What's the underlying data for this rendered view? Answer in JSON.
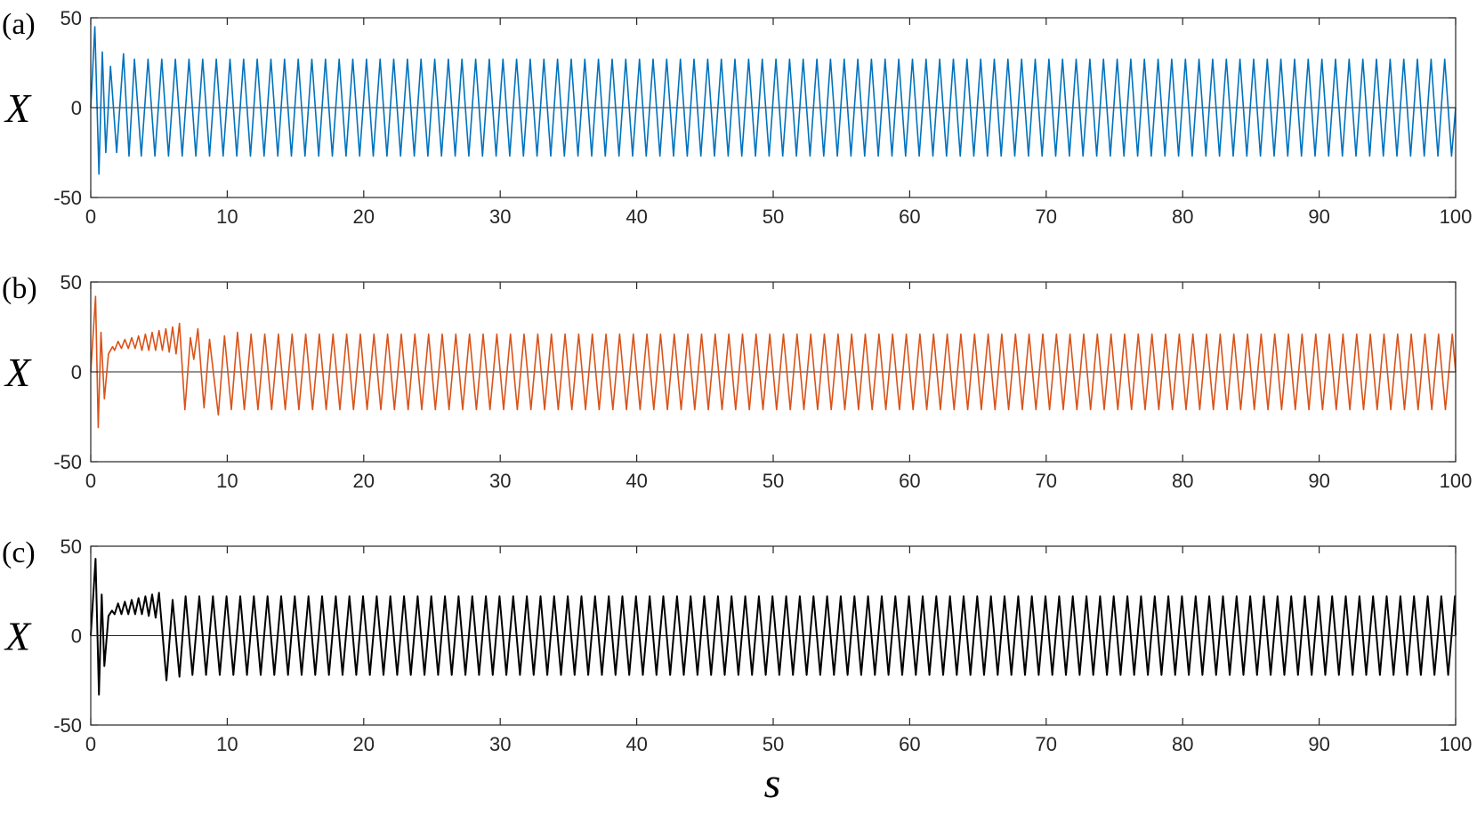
{
  "xlabel": "s",
  "chart_data": [
    {
      "type": "line",
      "panel_label": "(a)",
      "ylabel": "X",
      "xlim": [
        0,
        100
      ],
      "ylim": [
        -50,
        50
      ],
      "xticks": [
        0,
        10,
        20,
        30,
        40,
        50,
        60,
        70,
        80,
        90,
        100
      ],
      "yticks": [
        -50,
        0,
        50
      ],
      "series": [
        {
          "color": "#0072BD",
          "transient": [
            [
              0,
              0
            ],
            [
              0.3,
              45
            ],
            [
              0.6,
              -37
            ],
            [
              0.85,
              31
            ],
            [
              1.1,
              -25
            ],
            [
              1.45,
              23
            ],
            [
              1.9,
              -25
            ],
            [
              2.4,
              30
            ],
            [
              2.8,
              -27
            ],
            [
              3.2,
              27
            ]
          ],
          "steady": {
            "start": 3.2,
            "period": 1.0,
            "max": 27,
            "min": -27,
            "end": 100
          }
        }
      ]
    },
    {
      "type": "line",
      "panel_label": "(b)",
      "ylabel": "X",
      "xlim": [
        0,
        100
      ],
      "ylim": [
        -50,
        50
      ],
      "xticks": [
        0,
        10,
        20,
        30,
        40,
        50,
        60,
        70,
        80,
        90,
        100
      ],
      "yticks": [
        -50,
        0,
        50
      ],
      "series": [
        {
          "color": "#D95319",
          "transient": [
            [
              0,
              0
            ],
            [
              0.35,
              42
            ],
            [
              0.55,
              -31
            ],
            [
              0.75,
              22
            ],
            [
              1.0,
              -15
            ],
            [
              1.3,
              10
            ],
            [
              1.6,
              14
            ],
            [
              1.75,
              12
            ],
            [
              2.0,
              17
            ],
            [
              2.25,
              13
            ],
            [
              2.5,
              18
            ],
            [
              2.75,
              13
            ],
            [
              3.0,
              19
            ],
            [
              3.25,
              13
            ],
            [
              3.5,
              20
            ],
            [
              3.75,
              12
            ],
            [
              4.0,
              21
            ],
            [
              4.25,
              12
            ],
            [
              4.5,
              22
            ],
            [
              4.75,
              12
            ],
            [
              5.0,
              23
            ],
            [
              5.25,
              12
            ],
            [
              5.5,
              24
            ],
            [
              5.75,
              11
            ],
            [
              6.0,
              25
            ],
            [
              6.25,
              10
            ],
            [
              6.5,
              27
            ],
            [
              6.9,
              -21
            ],
            [
              7.3,
              19
            ],
            [
              7.55,
              7
            ],
            [
              7.85,
              24
            ],
            [
              8.3,
              -20
            ],
            [
              8.7,
              18
            ],
            [
              9.35,
              -24
            ],
            [
              9.8,
              20
            ],
            [
              10.3,
              -21
            ],
            [
              10.75,
              22
            ]
          ],
          "steady": {
            "start": 10.75,
            "period": 1.0,
            "max": 21,
            "min": -21,
            "end": 100
          }
        }
      ]
    },
    {
      "type": "line",
      "panel_label": "(c)",
      "ylabel": "X",
      "xlim": [
        0,
        100
      ],
      "ylim": [
        -50,
        50
      ],
      "xticks": [
        0,
        10,
        20,
        30,
        40,
        50,
        60,
        70,
        80,
        90,
        100
      ],
      "yticks": [
        -50,
        0,
        50
      ],
      "series": [
        {
          "color": "#000000",
          "transient": [
            [
              0,
              0
            ],
            [
              0.35,
              43
            ],
            [
              0.6,
              -33
            ],
            [
              0.8,
              23
            ],
            [
              1.0,
              -17
            ],
            [
              1.3,
              11
            ],
            [
              1.55,
              14
            ],
            [
              1.75,
              12
            ],
            [
              2.0,
              18
            ],
            [
              2.25,
              12
            ],
            [
              2.5,
              19
            ],
            [
              2.75,
              12
            ],
            [
              3.0,
              20
            ],
            [
              3.25,
              12
            ],
            [
              3.5,
              21
            ],
            [
              3.75,
              12
            ],
            [
              4.0,
              22
            ],
            [
              4.25,
              11
            ],
            [
              4.5,
              23
            ],
            [
              4.75,
              10
            ],
            [
              5.0,
              24
            ],
            [
              5.55,
              -25
            ],
            [
              6.0,
              20
            ],
            [
              6.5,
              -23
            ],
            [
              6.95,
              22
            ]
          ],
          "steady": {
            "start": 6.95,
            "period": 1.0,
            "max": 22,
            "min": -22,
            "end": 100
          }
        }
      ]
    }
  ]
}
